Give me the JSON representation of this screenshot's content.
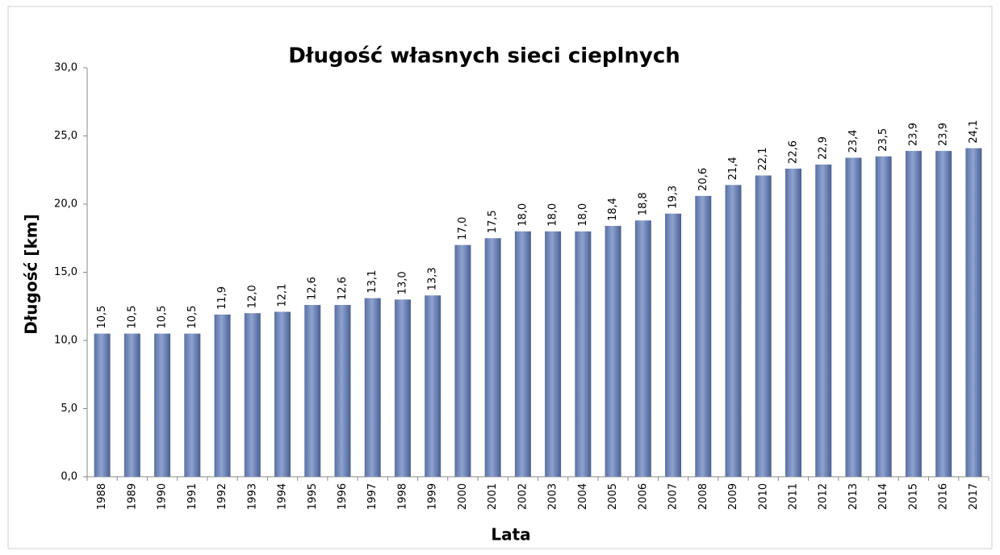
{
  "chart_data": {
    "type": "bar",
    "title": "Długość własnych sieci cieplnych",
    "x_label": "Lata",
    "y_label": "Długość [km]",
    "categories": [
      "1988",
      "1989",
      "1990",
      "1991",
      "1992",
      "1993",
      "1994",
      "1995",
      "1996",
      "1997",
      "1998",
      "1999",
      "2000",
      "2001",
      "2002",
      "2003",
      "2004",
      "2005",
      "2006",
      "2007",
      "2008",
      "2009",
      "2010",
      "2011",
      "2012",
      "2013",
      "2014",
      "2015",
      "2016",
      "2017"
    ],
    "values": [
      10.5,
      10.5,
      10.5,
      10.5,
      11.9,
      12.0,
      12.1,
      12.6,
      12.6,
      13.1,
      13.0,
      13.3,
      17.0,
      17.5,
      18.0,
      18.0,
      18.0,
      18.4,
      18.8,
      19.3,
      20.6,
      21.4,
      22.1,
      22.6,
      22.9,
      23.4,
      23.5,
      23.9,
      23.9,
      24.1
    ],
    "value_labels": [
      "10,5",
      "10,5",
      "10,5",
      "10,5",
      "11,9",
      "12,0",
      "12,1",
      "12,6",
      "12,6",
      "13,1",
      "13,0",
      "13,3",
      "17,0",
      "17,5",
      "18,0",
      "18,0",
      "18,0",
      "18,4",
      "18,8",
      "19,3",
      "20,6",
      "21,4",
      "22,1",
      "22,6",
      "22,9",
      "23,4",
      "23,5",
      "23,9",
      "23,9",
      "24,1"
    ],
    "color": "#8ea3d0",
    "ylim": [
      0,
      30
    ],
    "yticks": [
      {
        "value": 0,
        "label": "0,0"
      },
      {
        "value": 5,
        "label": "5,0"
      },
      {
        "value": 10,
        "label": "10,0"
      },
      {
        "value": 15,
        "label": "15,0"
      },
      {
        "value": 20,
        "label": "20,0"
      },
      {
        "value": 25,
        "label": "25,0"
      },
      {
        "value": 30,
        "label": "30,0"
      }
    ],
    "grid": false
  }
}
